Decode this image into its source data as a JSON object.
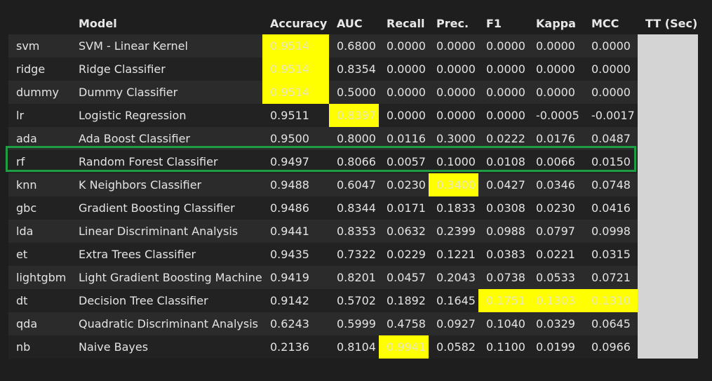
{
  "table": {
    "columns": [
      "",
      "Model",
      "Accuracy",
      "AUC",
      "Recall",
      "Prec.",
      "F1",
      "Kappa",
      "MCC",
      "TT (Sec)"
    ],
    "rows": [
      {
        "id": "svm",
        "model": "SVM - Linear Kernel",
        "accuracy": "0.9514",
        "auc": "0.6800",
        "recall": "0.0000",
        "prec": "0.0000",
        "f1": "0.0000",
        "kappa": "0.0000",
        "mcc": "0.0000",
        "tt": ""
      },
      {
        "id": "ridge",
        "model": "Ridge Classifier",
        "accuracy": "0.9514",
        "auc": "0.8354",
        "recall": "0.0000",
        "prec": "0.0000",
        "f1": "0.0000",
        "kappa": "0.0000",
        "mcc": "0.0000",
        "tt": ""
      },
      {
        "id": "dummy",
        "model": "Dummy Classifier",
        "accuracy": "0.9514",
        "auc": "0.5000",
        "recall": "0.0000",
        "prec": "0.0000",
        "f1": "0.0000",
        "kappa": "0.0000",
        "mcc": "0.0000",
        "tt": ""
      },
      {
        "id": "lr",
        "model": "Logistic Regression",
        "accuracy": "0.9511",
        "auc": "0.8397",
        "recall": "0.0000",
        "prec": "0.0000",
        "f1": "0.0000",
        "kappa": "-0.0005",
        "mcc": "-0.0017",
        "tt": ""
      },
      {
        "id": "ada",
        "model": "Ada Boost Classifier",
        "accuracy": "0.9500",
        "auc": "0.8000",
        "recall": "0.0116",
        "prec": "0.3000",
        "f1": "0.0222",
        "kappa": "0.0176",
        "mcc": "0.0487",
        "tt": ""
      },
      {
        "id": "rf",
        "model": "Random Forest Classifier",
        "accuracy": "0.9497",
        "auc": "0.8066",
        "recall": "0.0057",
        "prec": "0.1000",
        "f1": "0.0108",
        "kappa": "0.0066",
        "mcc": "0.0150",
        "tt": ""
      },
      {
        "id": "knn",
        "model": "K Neighbors Classifier",
        "accuracy": "0.9488",
        "auc": "0.6047",
        "recall": "0.0230",
        "prec": "0.3400",
        "f1": "0.0427",
        "kappa": "0.0346",
        "mcc": "0.0748",
        "tt": ""
      },
      {
        "id": "gbc",
        "model": "Gradient Boosting Classifier",
        "accuracy": "0.9486",
        "auc": "0.8344",
        "recall": "0.0171",
        "prec": "0.1833",
        "f1": "0.0308",
        "kappa": "0.0230",
        "mcc": "0.0416",
        "tt": ""
      },
      {
        "id": "lda",
        "model": "Linear Discriminant Analysis",
        "accuracy": "0.9441",
        "auc": "0.8353",
        "recall": "0.0632",
        "prec": "0.2399",
        "f1": "0.0988",
        "kappa": "0.0797",
        "mcc": "0.0998",
        "tt": ""
      },
      {
        "id": "et",
        "model": "Extra Trees Classifier",
        "accuracy": "0.9435",
        "auc": "0.7322",
        "recall": "0.0229",
        "prec": "0.1221",
        "f1": "0.0383",
        "kappa": "0.0221",
        "mcc": "0.0315",
        "tt": ""
      },
      {
        "id": "lightgbm",
        "model": "Light Gradient Boosting Machine",
        "accuracy": "0.9419",
        "auc": "0.8201",
        "recall": "0.0457",
        "prec": "0.2043",
        "f1": "0.0738",
        "kappa": "0.0533",
        "mcc": "0.0721",
        "tt": ""
      },
      {
        "id": "dt",
        "model": "Decision Tree Classifier",
        "accuracy": "0.9142",
        "auc": "0.5702",
        "recall": "0.1892",
        "prec": "0.1645",
        "f1": "0.1751",
        "kappa": "0.1303",
        "mcc": "0.1310",
        "tt": ""
      },
      {
        "id": "qda",
        "model": "Quadratic Discriminant Analysis",
        "accuracy": "0.6243",
        "auc": "0.5999",
        "recall": "0.4758",
        "prec": "0.0927",
        "f1": "0.1040",
        "kappa": "0.0329",
        "mcc": "0.0645",
        "tt": ""
      },
      {
        "id": "nb",
        "model": "Naive Bayes",
        "accuracy": "0.2136",
        "auc": "0.8104",
        "recall": "0.9941",
        "prec": "0.0582",
        "f1": "0.1100",
        "kappa": "0.0199",
        "mcc": "0.0966",
        "tt": ""
      }
    ],
    "highlighted_cells": [
      {
        "row": "svm",
        "col": "accuracy"
      },
      {
        "row": "ridge",
        "col": "accuracy"
      },
      {
        "row": "dummy",
        "col": "accuracy"
      },
      {
        "row": "lr",
        "col": "auc"
      },
      {
        "row": "knn",
        "col": "prec"
      },
      {
        "row": "dt",
        "col": "f1"
      },
      {
        "row": "dt",
        "col": "kappa"
      },
      {
        "row": "dt",
        "col": "mcc"
      },
      {
        "row": "nb",
        "col": "recall"
      }
    ],
    "boxed_row": "rf"
  },
  "colors": {
    "background": "#1e1e1e",
    "highlight": "#ffff00",
    "tt_column": "#d4d4d4",
    "box_outline": "#1e9d42"
  }
}
